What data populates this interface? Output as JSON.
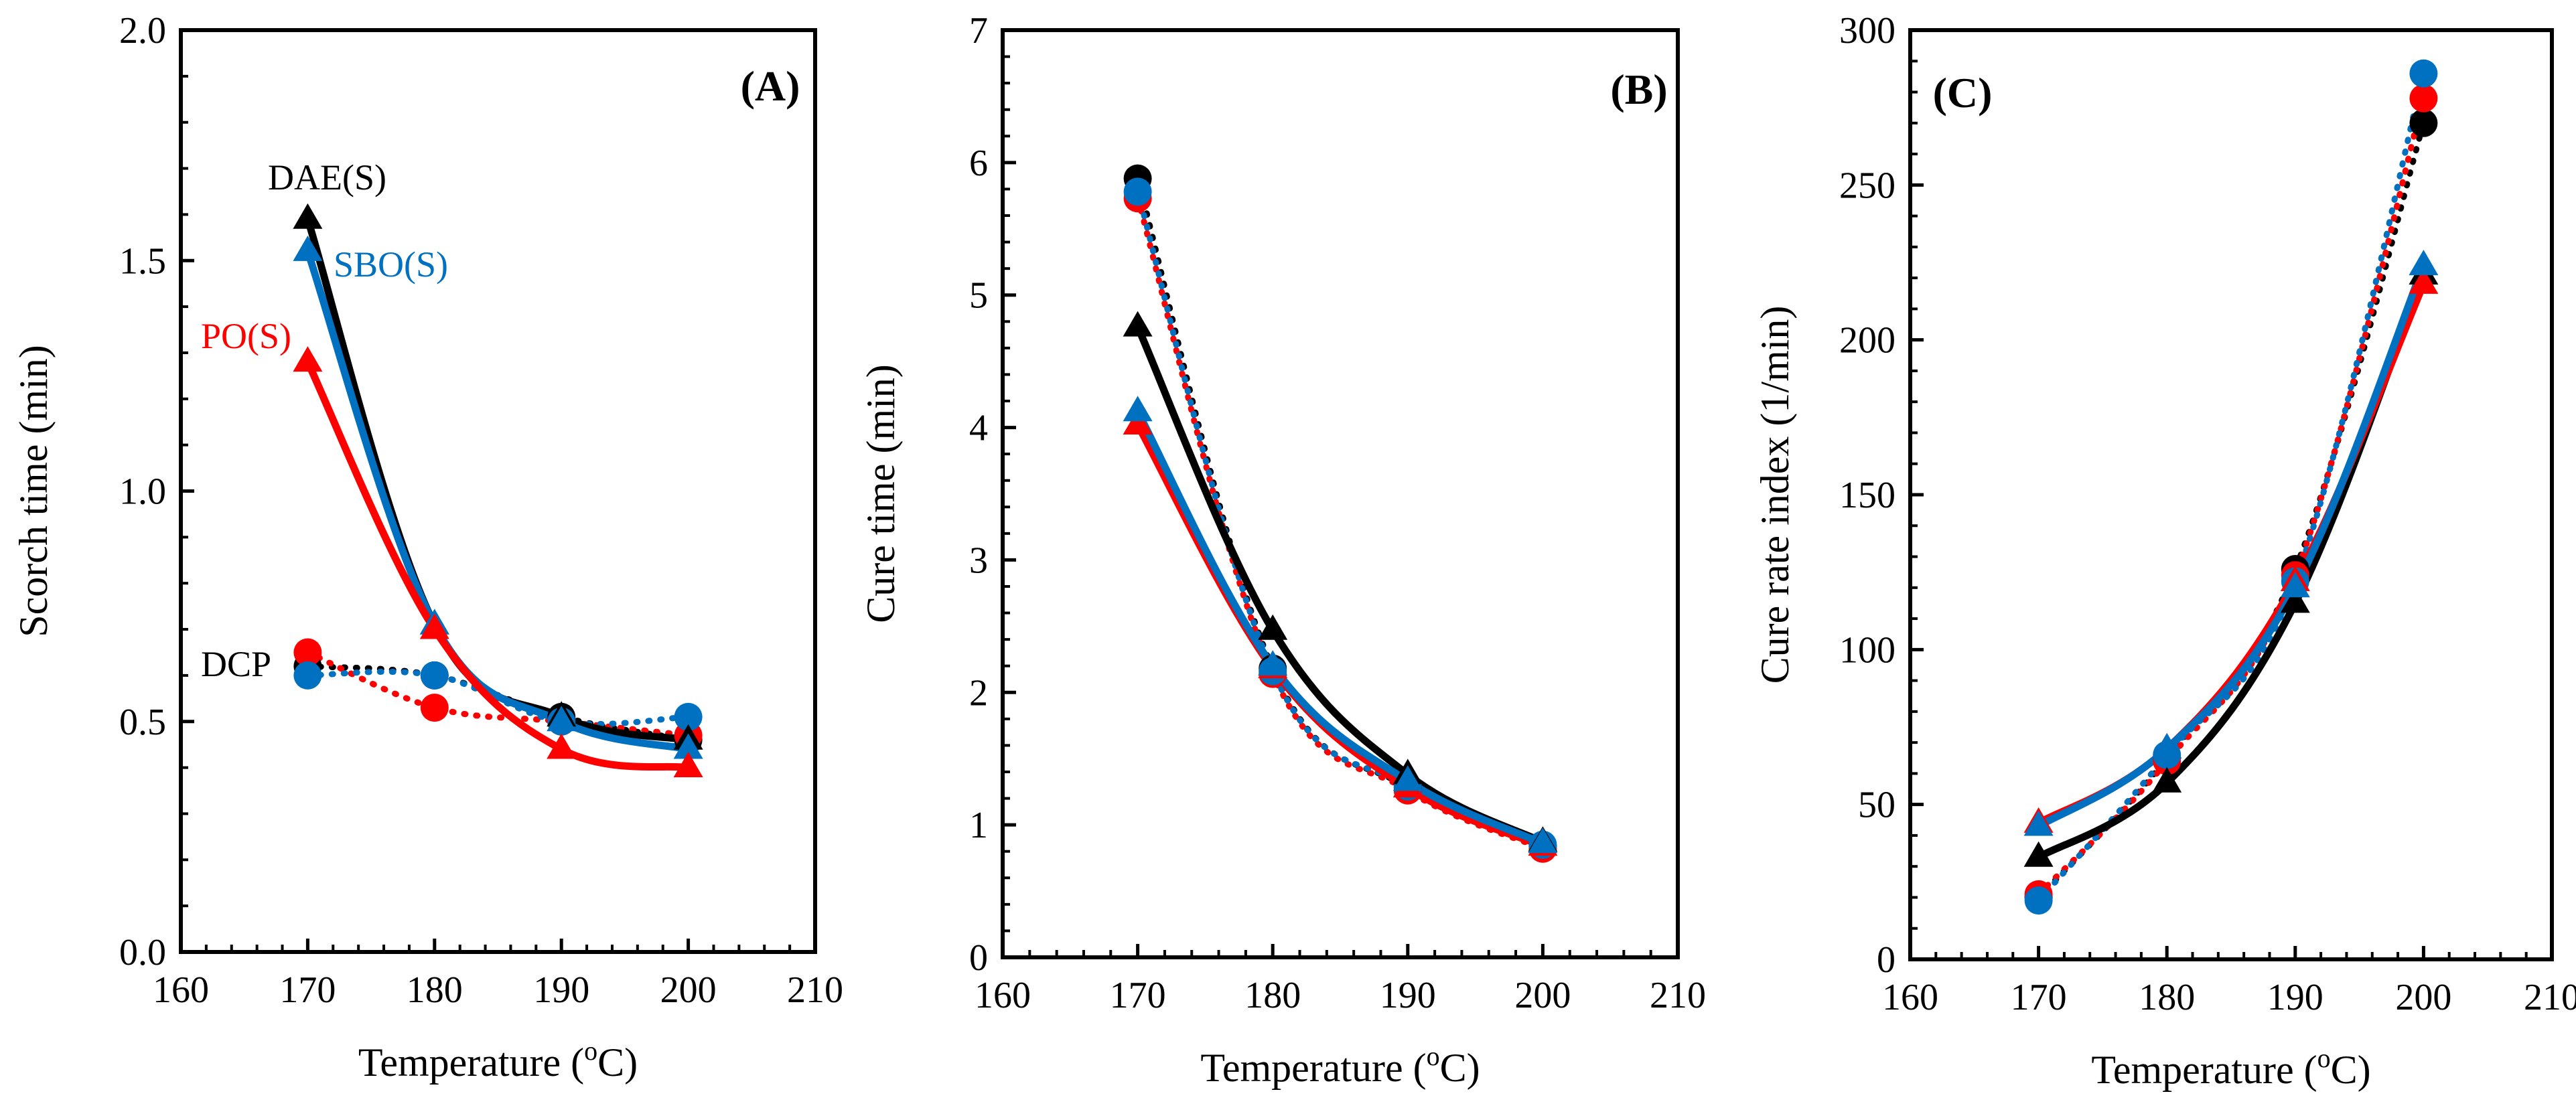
{
  "figure": {
    "panels": [
      {
        "id": "A",
        "panel_label": "(A)",
        "xlabel": "Temperature (",
        "xunit_sup": "o",
        "xunit_after": "C)",
        "ylabel": "Scorch time (min)",
        "xticks": [
          "160",
          "170",
          "180",
          "190",
          "200",
          "210"
        ],
        "yticks": [
          "0.0",
          "0.5",
          "1.0",
          "1.5",
          "2.0"
        ],
        "series_labels": [
          {
            "text": "DAE(S)",
            "color": "#000000"
          },
          {
            "text": "SBO(S)",
            "color": "#0070C0"
          },
          {
            "text": "PO(S)",
            "color": "#FF0000"
          },
          {
            "text": "DCP",
            "color": "#000000"
          }
        ]
      },
      {
        "id": "B",
        "panel_label": "(B)",
        "xlabel": "Temperature (",
        "xunit_sup": "o",
        "xunit_after": "C)",
        "ylabel": "Cure time (min)",
        "xticks": [
          "160",
          "170",
          "180",
          "190",
          "200",
          "210"
        ],
        "yticks": [
          "0",
          "1",
          "2",
          "3",
          "4",
          "5",
          "6",
          "7"
        ],
        "series_labels": []
      },
      {
        "id": "C",
        "panel_label": "(C)",
        "xlabel": "Temperature (",
        "xunit_sup": "o",
        "xunit_after": "C)",
        "ylabel": "Cure rate index (1/min)",
        "xticks": [
          "160",
          "170",
          "180",
          "190",
          "200",
          "210"
        ],
        "yticks": [
          "0",
          "50",
          "100",
          "150",
          "200",
          "250",
          "300"
        ],
        "series_labels": []
      }
    ]
  },
  "chart_data": [
    {
      "type": "line",
      "panel": "A",
      "title": "(A)",
      "xlabel": "Temperature (oC)",
      "ylabel": "Scorch time (min)",
      "xlim": [
        160,
        210
      ],
      "ylim": [
        0,
        2.0
      ],
      "grid": false,
      "x": [
        170,
        180,
        190,
        200
      ],
      "series": [
        {
          "name": "DAE(S)",
          "marker": "triangle",
          "line": "solid",
          "color": "#000000",
          "values": [
            1.59,
            0.71,
            0.51,
            0.46
          ]
        },
        {
          "name": "SBO(S)",
          "marker": "triangle",
          "line": "solid",
          "color": "#0070C0",
          "values": [
            1.52,
            0.71,
            0.5,
            0.44
          ]
        },
        {
          "name": "PO(S)",
          "marker": "triangle",
          "line": "solid",
          "color": "#FF0000",
          "values": [
            1.28,
            0.7,
            0.44,
            0.4
          ]
        },
        {
          "name": "DCP",
          "marker": "circle",
          "line": "dotted",
          "color": "#000000",
          "values": [
            0.62,
            0.6,
            0.51,
            0.46
          ]
        },
        {
          "marker": "circle",
          "line": "dotted",
          "color": "#FF0000",
          "values": [
            0.65,
            0.53,
            0.5,
            0.47
          ]
        },
        {
          "marker": "circle",
          "line": "dotted",
          "color": "#0070C0",
          "values": [
            0.6,
            0.6,
            0.5,
            0.51
          ]
        }
      ]
    },
    {
      "type": "line",
      "panel": "B",
      "title": "(B)",
      "xlabel": "Temperature (oC)",
      "ylabel": "Cure time (min)",
      "xlim": [
        160,
        210
      ],
      "ylim": [
        0,
        7
      ],
      "grid": false,
      "x": [
        170,
        180,
        190,
        200
      ],
      "series": [
        {
          "marker": "circle",
          "line": "dotted",
          "color": "#000000",
          "values": [
            5.88,
            2.18,
            1.28,
            0.84
          ]
        },
        {
          "marker": "circle",
          "line": "dotted",
          "color": "#FF0000",
          "values": [
            5.73,
            2.14,
            1.26,
            0.82
          ]
        },
        {
          "marker": "circle",
          "line": "dotted",
          "color": "#0070C0",
          "values": [
            5.78,
            2.16,
            1.29,
            0.85
          ]
        },
        {
          "marker": "triangle",
          "line": "solid",
          "color": "#000000",
          "values": [
            4.76,
            2.47,
            1.38,
            0.87
          ]
        },
        {
          "marker": "triangle",
          "line": "solid",
          "color": "#FF0000",
          "values": [
            4.02,
            2.18,
            1.28,
            0.84
          ]
        },
        {
          "marker": "triangle",
          "line": "solid",
          "color": "#0070C0",
          "values": [
            4.12,
            2.2,
            1.33,
            0.86
          ]
        }
      ]
    },
    {
      "type": "line",
      "panel": "C",
      "title": "(C)",
      "xlabel": "Temperature (oC)",
      "ylabel": "Cure rate index (1/min)",
      "xlim": [
        160,
        210
      ],
      "ylim": [
        0,
        300
      ],
      "grid": false,
      "x": [
        170,
        180,
        190,
        200
      ],
      "series": [
        {
          "marker": "circle",
          "line": "dotted",
          "color": "#000000",
          "values": [
            20,
            65,
            126,
            270
          ]
        },
        {
          "marker": "circle",
          "line": "dotted",
          "color": "#FF0000",
          "values": [
            21,
            64,
            124,
            278
          ]
        },
        {
          "marker": "circle",
          "line": "dotted",
          "color": "#0070C0",
          "values": [
            19,
            66,
            122,
            286
          ]
        },
        {
          "marker": "triangle",
          "line": "solid",
          "color": "#000000",
          "values": [
            33,
            57,
            115,
            221
          ]
        },
        {
          "marker": "triangle",
          "line": "solid",
          "color": "#FF0000",
          "values": [
            44,
            68,
            122,
            218
          ]
        },
        {
          "marker": "triangle",
          "line": "solid",
          "color": "#0070C0",
          "values": [
            43,
            68,
            120,
            224
          ]
        }
      ]
    }
  ]
}
